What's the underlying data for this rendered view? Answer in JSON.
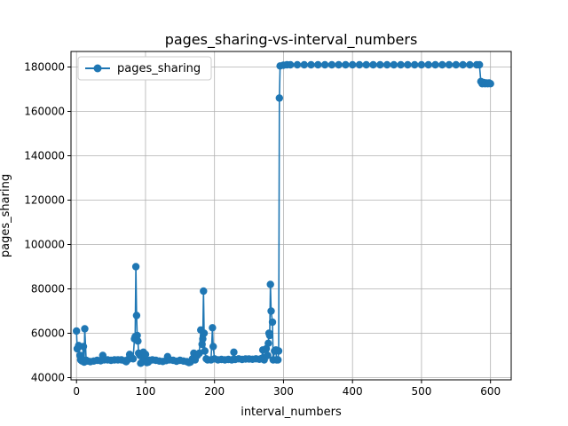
{
  "chart_data": {
    "type": "line",
    "title": "pages_sharing-vs-interval_numbers",
    "xlabel": "interval_numbers",
    "ylabel": "pages_sharing",
    "xlim": [
      -8,
      630
    ],
    "ylim": [
      39000,
      187000
    ],
    "x_ticks": [
      0,
      100,
      200,
      300,
      400,
      500,
      600
    ],
    "y_ticks": [
      40000,
      60000,
      80000,
      100000,
      120000,
      140000,
      160000,
      180000
    ],
    "grid": true,
    "legend_position": "top-left",
    "series": [
      {
        "name": "pages_sharing",
        "color": "#1f77b4",
        "marker": "circle",
        "points": [
          [
            0,
            61000
          ],
          [
            1,
            53000
          ],
          [
            3,
            54500
          ],
          [
            5,
            50000
          ],
          [
            6,
            48000
          ],
          [
            8,
            47500
          ],
          [
            10,
            54000
          ],
          [
            11,
            47000
          ],
          [
            12,
            62000
          ],
          [
            14,
            47800
          ],
          [
            16,
            47500
          ],
          [
            20,
            47200
          ],
          [
            25,
            47500
          ],
          [
            30,
            47800
          ],
          [
            35,
            47600
          ],
          [
            38,
            50000
          ],
          [
            40,
            48000
          ],
          [
            45,
            48000
          ],
          [
            50,
            47800
          ],
          [
            55,
            48000
          ],
          [
            60,
            48000
          ],
          [
            65,
            48000
          ],
          [
            70,
            47600
          ],
          [
            72,
            47200
          ],
          [
            75,
            48200
          ],
          [
            77,
            50500
          ],
          [
            80,
            49000
          ],
          [
            82,
            48500
          ],
          [
            84,
            57500
          ],
          [
            85,
            58500
          ],
          [
            86,
            90000
          ],
          [
            87,
            68000
          ],
          [
            88,
            59000
          ],
          [
            89,
            56500
          ],
          [
            90,
            51000
          ],
          [
            92,
            50000
          ],
          [
            93,
            46500
          ],
          [
            95,
            47000
          ],
          [
            97,
            51500
          ],
          [
            99,
            48500
          ],
          [
            100,
            50500
          ],
          [
            102,
            46800
          ],
          [
            104,
            47000
          ],
          [
            106,
            47800
          ],
          [
            110,
            48000
          ],
          [
            115,
            47800
          ],
          [
            120,
            47500
          ],
          [
            125,
            47300
          ],
          [
            130,
            47700
          ],
          [
            132,
            49500
          ],
          [
            135,
            48000
          ],
          [
            140,
            47800
          ],
          [
            145,
            47400
          ],
          [
            150,
            47800
          ],
          [
            155,
            47500
          ],
          [
            160,
            47200
          ],
          [
            163,
            46800
          ],
          [
            165,
            47000
          ],
          [
            168,
            48500
          ],
          [
            170,
            51000
          ],
          [
            172,
            48000
          ],
          [
            175,
            50000
          ],
          [
            178,
            51000
          ],
          [
            180,
            61500
          ],
          [
            182,
            55000
          ],
          [
            183,
            57500
          ],
          [
            184,
            79000
          ],
          [
            185,
            60000
          ],
          [
            186,
            52000
          ],
          [
            188,
            48500
          ],
          [
            190,
            48000
          ],
          [
            195,
            48000
          ],
          [
            197,
            62500
          ],
          [
            198,
            54000
          ],
          [
            200,
            48500
          ],
          [
            205,
            48000
          ],
          [
            210,
            48200
          ],
          [
            215,
            48000
          ],
          [
            220,
            48200
          ],
          [
            225,
            48000
          ],
          [
            228,
            51500
          ],
          [
            230,
            48200
          ],
          [
            235,
            48500
          ],
          [
            240,
            48200
          ],
          [
            245,
            48400
          ],
          [
            250,
            48400
          ],
          [
            255,
            48300
          ],
          [
            260,
            48500
          ],
          [
            265,
            48300
          ],
          [
            268,
            48600
          ],
          [
            270,
            52500
          ],
          [
            272,
            48000
          ],
          [
            275,
            53000
          ],
          [
            277,
            50000
          ],
          [
            278,
            55500
          ],
          [
            279,
            60000
          ],
          [
            280,
            59000
          ],
          [
            281,
            82000
          ],
          [
            282,
            70000
          ],
          [
            284,
            65000
          ],
          [
            285,
            48000
          ],
          [
            287,
            52000
          ],
          [
            289,
            52500
          ],
          [
            290,
            48000
          ],
          [
            292,
            48000
          ],
          [
            293,
            52000
          ],
          [
            294,
            166000
          ],
          [
            295,
            180500
          ],
          [
            300,
            180800
          ],
          [
            305,
            181000
          ],
          [
            310,
            181000
          ],
          [
            320,
            181000
          ],
          [
            330,
            181000
          ],
          [
            340,
            181000
          ],
          [
            350,
            181000
          ],
          [
            360,
            181000
          ],
          [
            370,
            181000
          ],
          [
            380,
            181000
          ],
          [
            390,
            181000
          ],
          [
            400,
            181000
          ],
          [
            410,
            181000
          ],
          [
            420,
            181000
          ],
          [
            430,
            181000
          ],
          [
            440,
            181000
          ],
          [
            450,
            181000
          ],
          [
            460,
            181000
          ],
          [
            470,
            181000
          ],
          [
            480,
            181000
          ],
          [
            490,
            181000
          ],
          [
            500,
            181000
          ],
          [
            510,
            181000
          ],
          [
            520,
            181000
          ],
          [
            530,
            181000
          ],
          [
            540,
            181000
          ],
          [
            550,
            181000
          ],
          [
            560,
            181000
          ],
          [
            570,
            181000
          ],
          [
            580,
            181000
          ],
          [
            584,
            181000
          ],
          [
            586,
            173500
          ],
          [
            588,
            172500
          ],
          [
            590,
            173000
          ],
          [
            592,
            172500
          ],
          [
            594,
            172800
          ],
          [
            596,
            172500
          ],
          [
            598,
            172800
          ],
          [
            600,
            172500
          ]
        ]
      }
    ]
  }
}
